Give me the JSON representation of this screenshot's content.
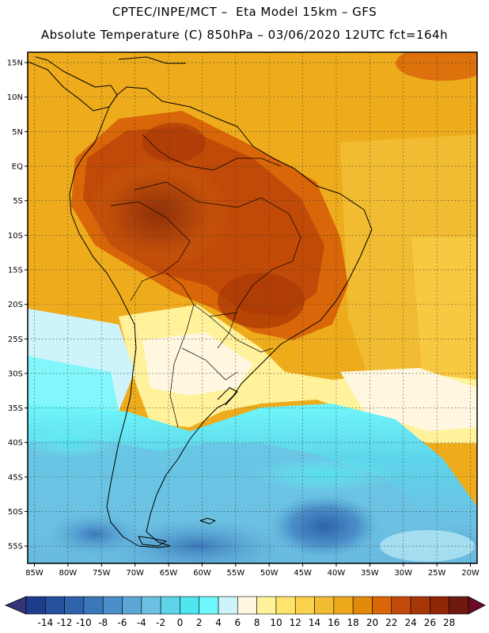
{
  "header": {
    "line1": "CPTEC/INPE/MCT –  Eta Model 15km – GFS",
    "line2": "Absolute Temperature (C) 850hPa – 03/06/2020 12UTC fct=164h"
  },
  "map": {
    "lon_range": [
      -86,
      -19
    ],
    "lat_range": [
      -57.5,
      16.5
    ],
    "lat_ticks": [
      {
        "value": 15,
        "label": "15N"
      },
      {
        "value": 10,
        "label": "10N"
      },
      {
        "value": 5,
        "label": "5N"
      },
      {
        "value": 0,
        "label": "EQ"
      },
      {
        "value": -5,
        "label": "5S"
      },
      {
        "value": -10,
        "label": "10S"
      },
      {
        "value": -15,
        "label": "15S"
      },
      {
        "value": -20,
        "label": "20S"
      },
      {
        "value": -25,
        "label": "25S"
      },
      {
        "value": -30,
        "label": "30S"
      },
      {
        "value": -35,
        "label": "35S"
      },
      {
        "value": -40,
        "label": "40S"
      },
      {
        "value": -45,
        "label": "45S"
      },
      {
        "value": -50,
        "label": "50S"
      },
      {
        "value": -55,
        "label": "55S"
      }
    ],
    "lon_ticks": [
      {
        "value": -85,
        "label": "85W"
      },
      {
        "value": -80,
        "label": "80W"
      },
      {
        "value": -75,
        "label": "75W"
      },
      {
        "value": -70,
        "label": "70W"
      },
      {
        "value": -65,
        "label": "65W"
      },
      {
        "value": -60,
        "label": "60W"
      },
      {
        "value": -55,
        "label": "55W"
      },
      {
        "value": -50,
        "label": "50W"
      },
      {
        "value": -45,
        "label": "45W"
      },
      {
        "value": -40,
        "label": "40W"
      },
      {
        "value": -35,
        "label": "35W"
      },
      {
        "value": -30,
        "label": "30W"
      },
      {
        "value": -25,
        "label": "25W"
      },
      {
        "value": -20,
        "label": "20W"
      }
    ],
    "grid": "dotted"
  },
  "colorbar": {
    "labels": [
      "-14",
      "-12",
      "-10",
      "-8",
      "-6",
      "-4",
      "-2",
      "0",
      "2",
      "4",
      "6",
      "8",
      "10",
      "12",
      "14",
      "16",
      "18",
      "20",
      "22",
      "24",
      "26",
      "28"
    ],
    "colors": [
      "#1f3d8c",
      "#27509c",
      "#2f63ab",
      "#3a78ba",
      "#4a8fc8",
      "#5aa7d5",
      "#6cc0e1",
      "#5ed4ea",
      "#4ee6f1",
      "#6ff8fb",
      "#cdf3fb",
      "#fff7e0",
      "#fff29a",
      "#ffe56b",
      "#fad24b",
      "#f2bc32",
      "#eda71a",
      "#e48a0a",
      "#d96608",
      "#c14a08",
      "#a83706",
      "#8f2605",
      "#6f1a10"
    ],
    "left_arrow": "#35337a",
    "right_arrow": "#6b0b2a"
  }
}
